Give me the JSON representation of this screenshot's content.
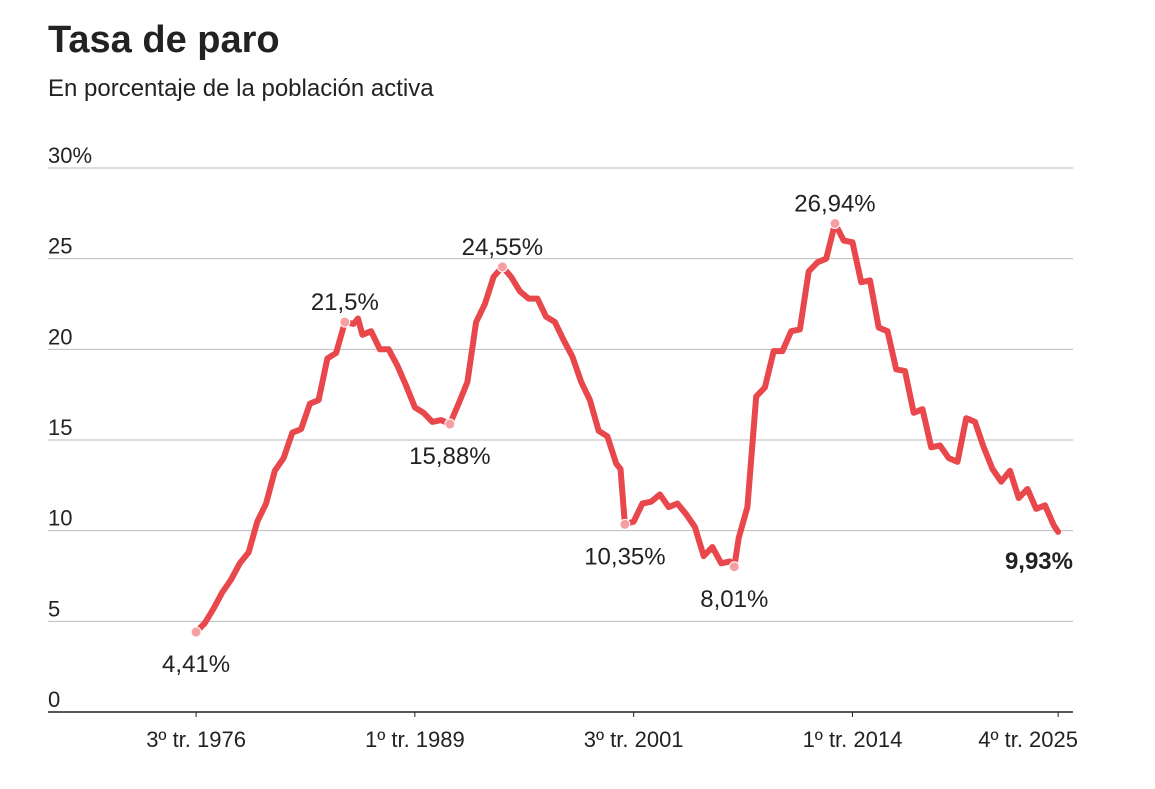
{
  "chart_data": {
    "type": "line",
    "title": "Tasa de paro",
    "subtitle": "En porcentaje de la población activa",
    "x": [
      1976.5,
      1977.0,
      1977.5,
      1978.0,
      1978.5,
      1979.0,
      1979.5,
      1980.0,
      1980.5,
      1981.0,
      1981.5,
      1982.0,
      1982.5,
      1983.0,
      1983.5,
      1984.0,
      1984.5,
      1985.0,
      1985.5,
      1985.75,
      1986.0,
      1986.5,
      1987.0,
      1987.5,
      1988.0,
      1988.5,
      1989.0,
      1989.5,
      1990.0,
      1990.5,
      1991.0,
      1991.5,
      1992.0,
      1992.5,
      1993.0,
      1993.5,
      1994.0,
      1994.5,
      1995.0,
      1995.5,
      1996.0,
      1996.5,
      1997.0,
      1997.5,
      1998.0,
      1998.5,
      1999.0,
      1999.5,
      2000.0,
      2000.5,
      2000.75,
      2001.0,
      2001.5,
      2002.0,
      2002.5,
      2003.0,
      2003.5,
      2004.0,
      2004.5,
      2005.0,
      2005.5,
      2006.0,
      2006.5,
      2007.0,
      2007.25,
      2007.5,
      2008.0,
      2008.5,
      2009.0,
      2009.5,
      2010.0,
      2010.5,
      2011.0,
      2011.5,
      2012.0,
      2012.5,
      2013.0,
      2013.5,
      2014.0,
      2014.5,
      2015.0,
      2015.5,
      2016.0,
      2016.5,
      2017.0,
      2017.5,
      2018.0,
      2018.5,
      2019.0,
      2019.5,
      2020.0,
      2020.5,
      2021.0,
      2021.5,
      2022.0,
      2022.5,
      2023.0,
      2023.5,
      2024.0,
      2024.5,
      2025.0,
      2025.5,
      2025.75
    ],
    "series": [
      {
        "name": "Tasa de paro",
        "color": "#e8474c",
        "values": [
          4.41,
          4.9,
          5.7,
          6.6,
          7.3,
          8.2,
          8.8,
          10.5,
          11.5,
          13.3,
          14.0,
          15.4,
          15.6,
          17.0,
          17.2,
          19.5,
          19.8,
          21.5,
          21.4,
          21.7,
          20.8,
          21.0,
          20.0,
          20.0,
          19.1,
          18.0,
          16.8,
          16.5,
          16.0,
          16.1,
          15.88,
          17.0,
          18.2,
          21.5,
          22.5,
          24.0,
          24.55,
          24.0,
          23.2,
          22.8,
          22.8,
          21.8,
          21.5,
          20.5,
          19.6,
          18.2,
          17.2,
          15.5,
          15.2,
          13.7,
          13.4,
          10.35,
          10.5,
          11.5,
          11.6,
          12.0,
          11.3,
          11.5,
          10.9,
          10.2,
          8.6,
          9.1,
          8.2,
          8.3,
          8.01,
          9.6,
          11.3,
          17.4,
          17.9,
          19.9,
          19.9,
          21.0,
          21.1,
          24.3,
          24.8,
          25.0,
          26.94,
          26.0,
          25.9,
          23.7,
          23.8,
          21.2,
          21.0,
          18.9,
          18.8,
          16.5,
          16.7,
          14.6,
          14.7,
          14.0,
          13.8,
          16.2,
          16.0,
          14.6,
          13.4,
          12.7,
          13.3,
          11.8,
          12.3,
          11.2,
          11.4,
          10.3,
          9.93
        ]
      }
    ],
    "annotations": [
      {
        "text": "4,41%",
        "x": 1976.5,
        "y": 4.41,
        "position": "below"
      },
      {
        "text": "21,5%",
        "x": 1985.0,
        "y": 21.5,
        "position": "above"
      },
      {
        "text": "15,88%",
        "x": 1991.0,
        "y": 15.88,
        "position": "below"
      },
      {
        "text": "24,55%",
        "x": 1994.0,
        "y": 24.55,
        "position": "above"
      },
      {
        "text": "10,35%",
        "x": 2001.0,
        "y": 10.35,
        "position": "below"
      },
      {
        "text": "8,01%",
        "x": 2007.25,
        "y": 8.01,
        "position": "below"
      },
      {
        "text": "26,94%",
        "x": 2013.0,
        "y": 26.94,
        "position": "above"
      },
      {
        "text": "9,93%",
        "x": 2025.75,
        "y": 9.93,
        "position": "below-end",
        "bold": true
      }
    ],
    "xlim": [
      1968.04,
      2026.6
    ],
    "xticks": [
      {
        "value": 1976.5,
        "label": "3º tr. 1976"
      },
      {
        "value": 1989.0,
        "label": "1º tr. 1989"
      },
      {
        "value": 2001.5,
        "label": "3º tr. 2001"
      },
      {
        "value": 2014.0,
        "label": "1º tr. 2014"
      },
      {
        "value": 2025.75,
        "label": "4º tr. 2025"
      }
    ],
    "ylim": [
      0,
      30
    ],
    "yticks": [
      0,
      5,
      10,
      15,
      20,
      25,
      {
        "value": 30,
        "label": "30%"
      }
    ],
    "grid": true
  }
}
